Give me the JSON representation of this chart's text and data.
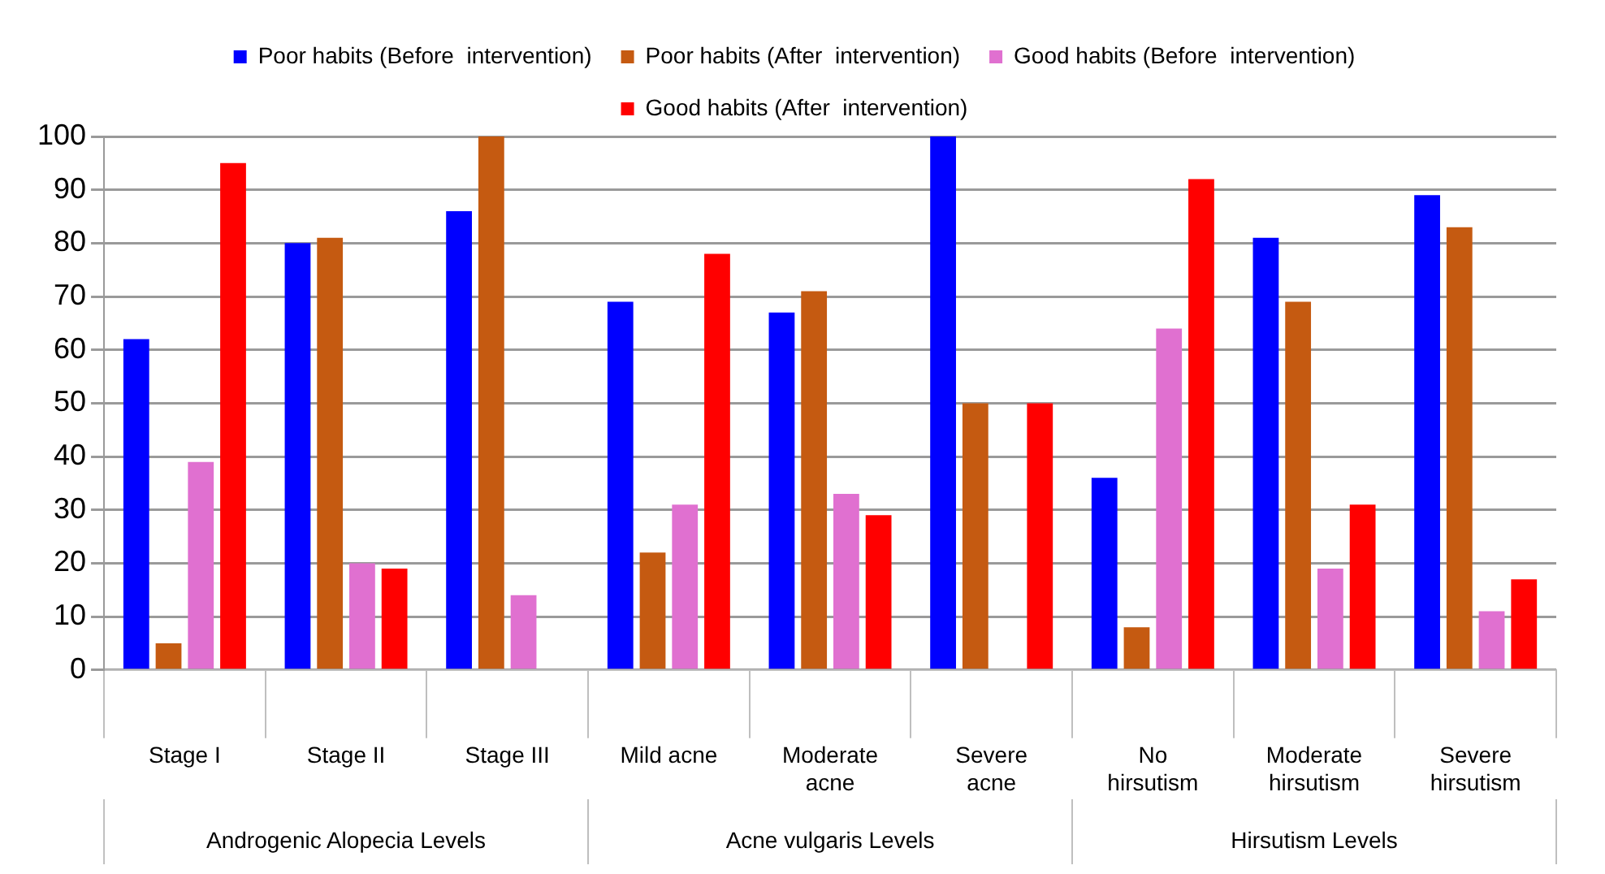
{
  "chart_data": {
    "type": "bar",
    "categories": [
      "Stage I",
      "Stage II",
      "Stage III",
      "Mild acne",
      "Moderate acne",
      "Severe acne",
      "No hirsutism",
      "Moderate hirsutism",
      "Severe hirsutism"
    ],
    "series": [
      {
        "name": "Poor habits (Before  intervention)",
        "color": "#0000ff",
        "values": [
          62,
          80,
          86,
          69,
          67,
          100,
          36,
          81,
          89
        ]
      },
      {
        "name": "Poor habits (After  intervention)",
        "color": "#c55a11",
        "values": [
          5,
          81,
          100,
          22,
          71,
          50,
          8,
          69,
          83
        ]
      },
      {
        "name": "Good habits (Before  intervention)",
        "color": "#e070d0",
        "values": [
          39,
          20,
          14,
          31,
          33,
          0,
          64,
          19,
          11
        ]
      },
      {
        "name": "Good habits (After  intervention)",
        "color": "#ff0000",
        "values": [
          95,
          19,
          0,
          78,
          29,
          50,
          92,
          31,
          17
        ]
      }
    ],
    "ylim": [
      0,
      100
    ],
    "yticks": [
      0,
      10,
      20,
      30,
      40,
      50,
      60,
      70,
      80,
      90,
      100
    ],
    "grid": "y",
    "legend": "top",
    "annotations": [
      "Androgenic Alopecia Levels",
      "Acne vulgaris Levels",
      "Hirsutism Levels"
    ]
  }
}
